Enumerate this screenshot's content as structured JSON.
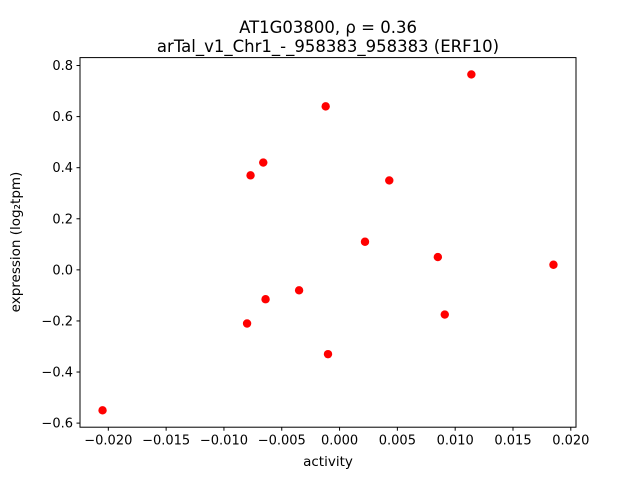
{
  "figure": {
    "title_line1": "AT1G03800, ρ = 0.36",
    "title_line2": "arTal_v1_Chr1_-_958383_958383 (ERF10)",
    "xlabel": "activity",
    "ylabel": "expression (log₂tpm)"
  },
  "chart_data": {
    "type": "scatter",
    "title": "AT1G03800, ρ = 0.36\narTal_v1_Chr1_-_958383_958383 (ERF10)",
    "subtitle_gene": "ERF10",
    "correlation_rho": 0.36,
    "xlabel": "activity",
    "ylabel": "expression (log2tpm)",
    "legend": "none",
    "grid": false,
    "marker_color": "#ff0000",
    "marker_shape": "circle",
    "xlim": [
      -0.02245,
      0.02045
    ],
    "ylim": [
      -0.616,
      0.831
    ],
    "x_ticks": [
      -0.02,
      -0.015,
      -0.01,
      -0.005,
      0.0,
      0.005,
      0.01,
      0.015,
      0.02
    ],
    "x_tick_labels": [
      "−0.020",
      "−0.015",
      "−0.010",
      "−0.005",
      "0.000",
      "0.005",
      "0.010",
      "0.015",
      "0.020"
    ],
    "y_ticks": [
      -0.6,
      -0.4,
      -0.2,
      0.0,
      0.2,
      0.4,
      0.6,
      0.8
    ],
    "y_tick_labels": [
      "−0.6",
      "−0.4",
      "−0.2",
      "0.0",
      "0.2",
      "0.4",
      "0.6",
      "0.8"
    ],
    "points": [
      {
        "x": -0.0205,
        "y": -0.55
      },
      {
        "x": -0.008,
        "y": -0.21
      },
      {
        "x": -0.0077,
        "y": 0.37
      },
      {
        "x": -0.0066,
        "y": 0.42
      },
      {
        "x": -0.0064,
        "y": -0.115
      },
      {
        "x": -0.0035,
        "y": -0.08
      },
      {
        "x": -0.0012,
        "y": 0.64
      },
      {
        "x": -0.001,
        "y": -0.33
      },
      {
        "x": 0.0022,
        "y": 0.11
      },
      {
        "x": 0.0043,
        "y": 0.35
      },
      {
        "x": 0.0085,
        "y": 0.05
      },
      {
        "x": 0.0091,
        "y": -0.175
      },
      {
        "x": 0.0114,
        "y": 0.765
      },
      {
        "x": 0.0185,
        "y": 0.02
      }
    ]
  }
}
